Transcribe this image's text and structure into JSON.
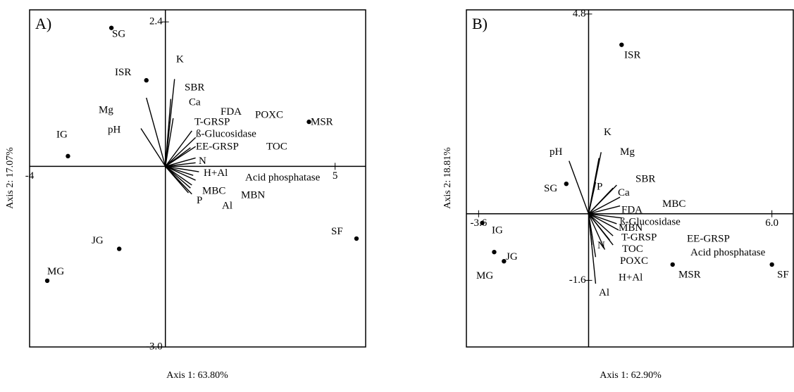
{
  "chart_data": [
    {
      "type": "biplot",
      "title": "A)",
      "x_label": "Axis 1: 63.80%",
      "y_label": "Axis 2: 17.07%",
      "color": "#000000",
      "xlim": [
        -4.0,
        5.9
      ],
      "ylim": [
        -3.0,
        2.6
      ],
      "xticks": [
        -4,
        5
      ],
      "yticks": [
        {
          "value": -3.0,
          "label": "-3.0"
        },
        2.4
      ],
      "points": {
        "names": [
          "SG",
          "ISR",
          "IG",
          "MSR",
          "SF",
          "JG",
          "MG"
        ],
        "x": [
          -1.59,
          -0.56,
          -2.87,
          4.23,
          5.63,
          -1.36,
          -3.48
        ],
        "y": [
          2.3,
          1.43,
          0.17,
          0.74,
          -1.2,
          -1.37,
          -1.9
        ]
      },
      "vectors": {
        "names": [
          "K",
          "SBR",
          "Ca",
          "Mg",
          "pH",
          "FDA",
          "POXC",
          "T-GRSP",
          "ß-Glucosidase",
          "EE-GRSP",
          "TOC",
          "N",
          "H+Al",
          "Acid phosphatase",
          "MBC",
          "MBN",
          "P",
          "Al"
        ],
        "x": [
          0.27,
          0.16,
          0.23,
          -0.56,
          -0.72,
          0.78,
          0.74,
          0.89,
          0.89,
          0.89,
          0.89,
          0.99,
          0.89,
          0.78,
          0.82,
          0.74,
          0.68,
          0.78
        ],
        "y": [
          1.45,
          1.12,
          0.8,
          1.14,
          0.63,
          0.59,
          0.31,
          0.48,
          0.33,
          0.14,
          0.06,
          -0.09,
          -0.23,
          -0.31,
          -0.15,
          -0.36,
          -0.44,
          -0.46
        ]
      }
    },
    {
      "type": "biplot",
      "title": "B)",
      "x_label": "Axis 1: 62.90%",
      "y_label": "Axis 2: 18.81%",
      "color": "#000000",
      "xlim": [
        -4.0,
        6.7
      ],
      "ylim": [
        -3.2,
        4.9
      ],
      "xticks": [
        -3.6,
        {
          "value": 6.0,
          "label": "6.0"
        }
      ],
      "yticks": [
        -1.6,
        4.8
      ],
      "points": {
        "names": [
          "ISR",
          "SG",
          "IG",
          "JG",
          "MG",
          "MSR",
          "SF"
        ],
        "x": [
          1.08,
          -0.73,
          -3.48,
          -2.77,
          -3.09,
          2.75,
          6.0
        ],
        "y": [
          4.06,
          0.72,
          -0.22,
          -1.14,
          -0.92,
          -1.22,
          -1.22
        ]
      },
      "vectors": {
        "names": [
          "K",
          "Mg",
          "pH",
          "SBR",
          "Ca",
          "P",
          "MBC",
          "FDA",
          "ß-Glucosidase",
          "MBN",
          "T-GRSP",
          "EE-GRSP",
          "TOC",
          "Acid phosphatase",
          "POXC",
          "N",
          "H+Al",
          "Al"
        ],
        "x": [
          0.41,
          0.34,
          -0.64,
          0.92,
          0.8,
          0.23,
          1.03,
          1.03,
          1.08,
          0.92,
          0.98,
          0.8,
          0.69,
          0.8,
          0.53,
          0.11,
          0.23,
          0.23
        ],
        "y": [
          1.48,
          1.34,
          1.27,
          0.69,
          0.62,
          0.76,
          0.4,
          0.19,
          -0.1,
          -0.24,
          -0.39,
          -0.53,
          -0.63,
          -0.75,
          -0.86,
          -0.75,
          -1.04,
          -1.68
        ]
      }
    }
  ]
}
